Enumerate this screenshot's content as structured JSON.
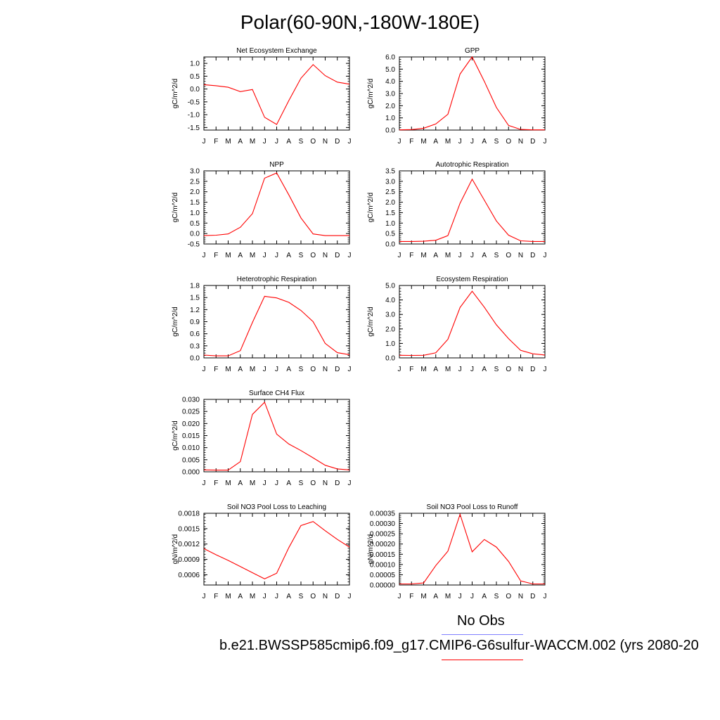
{
  "title": "Polar(60-90N,-180W-180E)",
  "months": [
    "J",
    "F",
    "M",
    "A",
    "M",
    "J",
    "J",
    "A",
    "S",
    "O",
    "N",
    "D",
    "J"
  ],
  "legend": {
    "obs_label": "No Obs",
    "obs_color": "#8080ff",
    "model_label": "b.e21.BWSSP585cmip6.f09_g17.CMIP6-G6sulfur-WACCM.002 (yrs 2080-20",
    "model_color": "#ff0000"
  },
  "chart_data": [
    {
      "type": "line",
      "title": "Net Ecosystem Exchange",
      "ylabel": "gC/m^2/d",
      "ylim": [
        -1.6,
        1.25
      ],
      "yticks": [
        -1.5,
        -1.0,
        -0.5,
        0.0,
        0.5,
        1.0
      ],
      "ytick_labels": [
        "-1.5",
        "-1.0",
        "-0.5",
        "0.0",
        "0.5",
        "1.0"
      ],
      "color": "#ff0000",
      "values": [
        0.17,
        0.13,
        0.07,
        -0.1,
        -0.02,
        -1.1,
        -1.38,
        -0.45,
        0.42,
        0.95,
        0.52,
        0.27,
        0.19
      ]
    },
    {
      "type": "line",
      "title": "GPP",
      "ylabel": "gC/m^2/d",
      "ylim": [
        0.0,
        6.0
      ],
      "yticks": [
        0.0,
        1.0,
        2.0,
        3.0,
        4.0,
        5.0,
        6.0
      ],
      "ytick_labels": [
        "0.0",
        "1.0",
        "2.0",
        "3.0",
        "4.0",
        "5.0",
        "6.0"
      ],
      "color": "#ff0000",
      "values": [
        0.02,
        0.04,
        0.15,
        0.5,
        1.3,
        4.6,
        6.0,
        4.0,
        1.85,
        0.38,
        0.05,
        0.02,
        0.02
      ]
    },
    {
      "type": "line",
      "title": "NPP",
      "ylabel": "gC/m^2/d",
      "ylim": [
        -0.5,
        3.0
      ],
      "yticks": [
        -0.5,
        0.0,
        0.5,
        1.0,
        1.5,
        2.0,
        2.5,
        3.0
      ],
      "ytick_labels": [
        "-0.5",
        "0.0",
        "0.5",
        "1.0",
        "1.5",
        "2.0",
        "2.5",
        "3.0"
      ],
      "color": "#ff0000",
      "values": [
        -0.1,
        -0.08,
        -0.02,
        0.3,
        0.95,
        2.65,
        2.9,
        1.85,
        0.75,
        -0.02,
        -0.1,
        -0.1,
        -0.1
      ]
    },
    {
      "type": "line",
      "title": "Autotrophic Respiration",
      "ylabel": "gC/m^2/d",
      "ylim": [
        0.0,
        3.5
      ],
      "yticks": [
        0.0,
        0.5,
        1.0,
        1.5,
        2.0,
        2.5,
        3.0,
        3.5
      ],
      "ytick_labels": [
        "0.0",
        "0.5",
        "1.0",
        "1.5",
        "2.0",
        "2.5",
        "3.0",
        "3.5"
      ],
      "color": "#ff0000",
      "values": [
        0.12,
        0.12,
        0.13,
        0.18,
        0.4,
        1.95,
        3.1,
        2.1,
        1.1,
        0.42,
        0.15,
        0.12,
        0.12
      ]
    },
    {
      "type": "line",
      "title": "Heterotrophic Respiration",
      "ylabel": "gC/m^2/d",
      "ylim": [
        0.0,
        1.8
      ],
      "yticks": [
        0.0,
        0.3,
        0.6,
        0.9,
        1.2,
        1.5,
        1.8
      ],
      "ytick_labels": [
        "0.0",
        "0.3",
        "0.6",
        "0.9",
        "1.2",
        "1.5",
        "1.8"
      ],
      "color": "#ff0000",
      "values": [
        0.07,
        0.05,
        0.05,
        0.18,
        0.88,
        1.53,
        1.49,
        1.38,
        1.18,
        0.9,
        0.36,
        0.13,
        0.08
      ]
    },
    {
      "type": "line",
      "title": "Ecosystem Respiration",
      "ylabel": "gC/m^2/d",
      "ylim": [
        0.0,
        5.0
      ],
      "yticks": [
        0.0,
        1.0,
        2.0,
        3.0,
        4.0,
        5.0
      ],
      "ytick_labels": [
        "0.0",
        "1.0",
        "2.0",
        "3.0",
        "4.0",
        "5.0"
      ],
      "color": "#ff0000",
      "values": [
        0.18,
        0.17,
        0.18,
        0.35,
        1.28,
        3.48,
        4.6,
        3.5,
        2.28,
        1.33,
        0.52,
        0.28,
        0.2
      ]
    },
    {
      "type": "line",
      "title": "Surface CH4 Flux",
      "ylabel": "gC/m^2/d",
      "ylim": [
        0.0,
        0.03
      ],
      "yticks": [
        0.0,
        0.005,
        0.01,
        0.015,
        0.02,
        0.025,
        0.03
      ],
      "ytick_labels": [
        "0.000",
        "0.005",
        "0.010",
        "0.015",
        "0.020",
        "0.025",
        "0.030"
      ],
      "color": "#ff0000",
      "values": [
        0.0008,
        0.0007,
        0.0007,
        0.0042,
        0.0238,
        0.0288,
        0.0156,
        0.0115,
        0.0088,
        0.0058,
        0.0027,
        0.0012,
        0.0008
      ]
    },
    {
      "type": "line",
      "title": "Soil NO3 Pool Loss to Leaching",
      "ylabel": "gN/m^2/d",
      "ylim": [
        0.0004,
        0.0018
      ],
      "yticks": [
        0.0006,
        0.0009,
        0.0012,
        0.0015,
        0.0018
      ],
      "ytick_labels": [
        "0.0006",
        "0.0009",
        "0.0012",
        "0.0015",
        "0.0018"
      ],
      "color": "#ff0000",
      "values": [
        0.00111,
        0.00099,
        0.00088,
        0.00076,
        0.00064,
        0.00052,
        0.00063,
        0.00113,
        0.00156,
        0.00164,
        0.00146,
        0.00129,
        0.00114
      ]
    },
    {
      "type": "line",
      "title": "Soil NO3 Pool Loss to Runoff",
      "ylabel": "gN/m^2/d",
      "ylim": [
        0.0,
        0.00035
      ],
      "yticks": [
        0.0,
        5e-05,
        0.0001,
        0.00015,
        0.0002,
        0.00025,
        0.0003,
        0.00035
      ],
      "ytick_labels": [
        "0.00000",
        "0.00005",
        "0.00010",
        "0.00015",
        "0.00020",
        "0.00025",
        "0.00030",
        "0.00035"
      ],
      "color": "#ff0000",
      "values": [
        5e-06,
        5e-06,
        1e-05,
        9.5e-05,
        0.000165,
        0.000345,
        0.000162,
        0.000222,
        0.000185,
        0.000115,
        2e-05,
        5e-06,
        5e-06
      ]
    }
  ]
}
